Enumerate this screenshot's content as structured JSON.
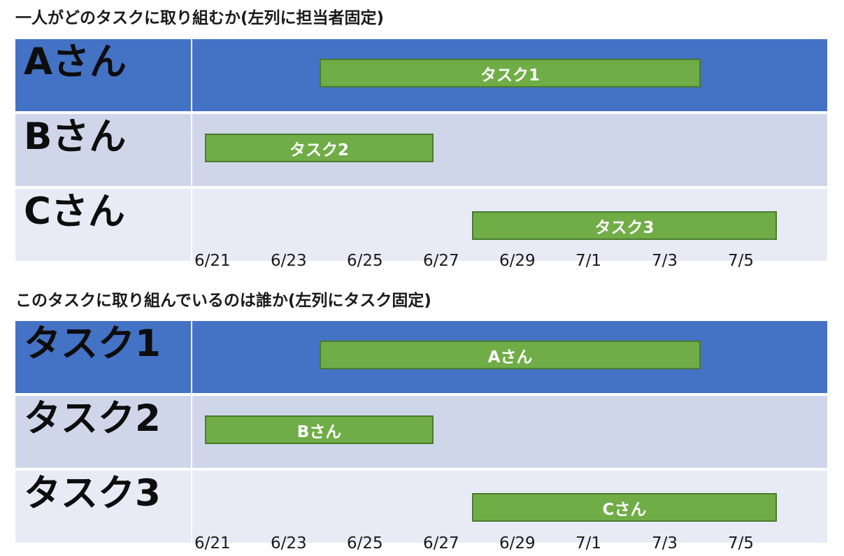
{
  "sections": [
    {
      "title": "一人がどのタスクに取り組むか(左列に担当者固定)",
      "rows": [
        {
          "label": "Aさん",
          "bar_label": "タスク1",
          "start": "6/24",
          "end": "7/4"
        },
        {
          "label": "Bさん",
          "bar_label": "タスク2",
          "start": "6/21",
          "end": "6/27"
        },
        {
          "label": "Cさん",
          "bar_label": "タスク3",
          "start": "6/28",
          "end": "7/6"
        }
      ],
      "ticks": [
        "6/21",
        "6/23",
        "6/25",
        "6/27",
        "6/29",
        "7/1",
        "7/3",
        "7/5"
      ]
    },
    {
      "title": "このタスクに取り組んでいるのは誰か(左列にタスク固定)",
      "rows": [
        {
          "label": "タスク1",
          "bar_label": "Aさん",
          "start": "6/24",
          "end": "7/4"
        },
        {
          "label": "タスク2",
          "bar_label": "Bさん",
          "start": "6/21",
          "end": "6/27"
        },
        {
          "label": "タスク3",
          "bar_label": "Cさん",
          "start": "6/28",
          "end": "7/6"
        }
      ],
      "ticks": [
        "6/21",
        "6/23",
        "6/25",
        "6/27",
        "6/29",
        "7/1",
        "7/3",
        "7/5"
      ]
    }
  ],
  "colors": {
    "row_highlight": "#4472c4",
    "row_band_1": "#d0d6ea",
    "row_band_2": "#e8ebf5",
    "bar": "#70ad47",
    "bar_border": "#4a7a2e",
    "bar_text": "#ffffff"
  }
}
